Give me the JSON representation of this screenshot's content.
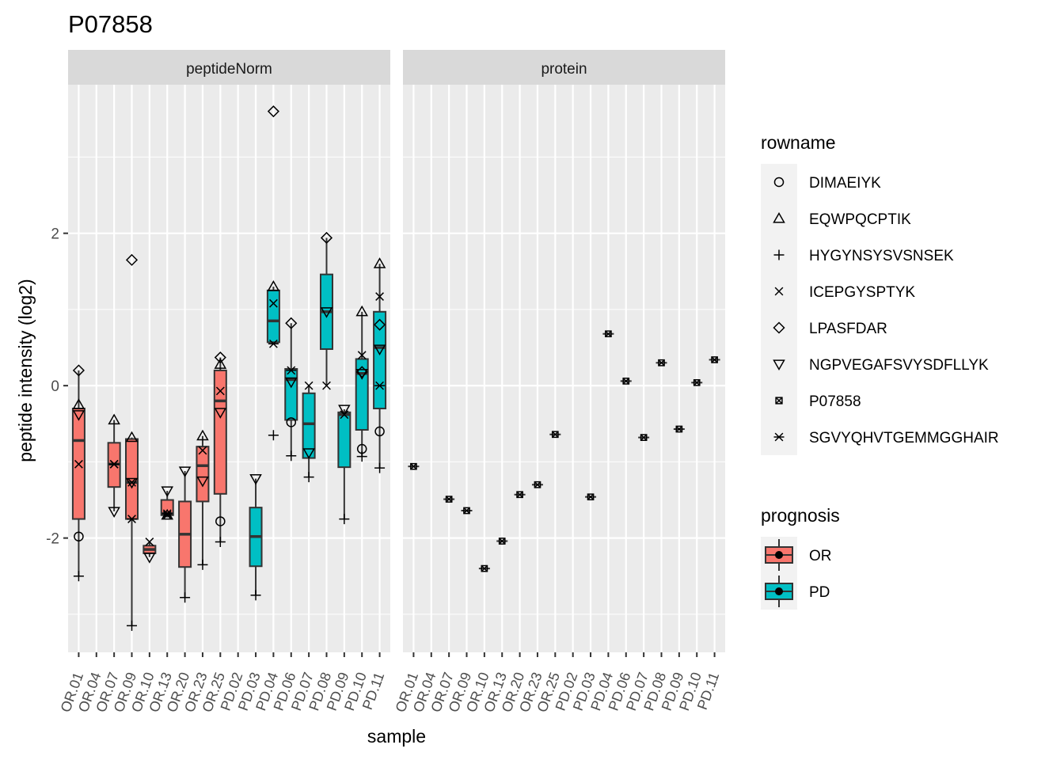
{
  "chart_data": {
    "type": "boxplot",
    "title": "P07858",
    "xlabel": "sample",
    "ylabel": "peptide intensity (log2)",
    "ylim": [
      -3.5,
      3.95
    ],
    "yticks": [
      -2,
      0,
      2
    ],
    "grid": true,
    "legend_position": "right",
    "categories": [
      "OR.01",
      "OR.04",
      "OR.07",
      "OR.09",
      "OR.10",
      "OR.13",
      "OR.20",
      "OR.23",
      "OR.25",
      "PD.02",
      "PD.03",
      "PD.04",
      "PD.06",
      "PD.07",
      "PD.08",
      "PD.09",
      "PD.10",
      "PD.11"
    ],
    "prognosis": [
      "OR",
      "OR",
      "OR",
      "OR",
      "OR",
      "OR",
      "OR",
      "OR",
      "OR",
      "PD",
      "PD",
      "PD",
      "PD",
      "PD",
      "PD",
      "PD",
      "PD",
      "PD"
    ],
    "fill_colors": {
      "OR": "#F8766D",
      "PD": "#00BFC4"
    },
    "panels": [
      {
        "name": "peptideNorm",
        "boxes": [
          {
            "sample": "OR.01",
            "prognosis": "OR",
            "min": -2.5,
            "q1": -1.75,
            "median": -0.72,
            "q3": -0.3,
            "max": 0.2
          },
          {
            "sample": "OR.07",
            "prognosis": "OR",
            "min": -1.65,
            "q1": -1.33,
            "median": -1.03,
            "q3": -0.75,
            "max": -0.45
          },
          {
            "sample": "OR.09",
            "prognosis": "OR",
            "min": -3.15,
            "q1": -1.75,
            "median": -1.27,
            "q3": -0.7,
            "max": -0.68
          },
          {
            "sample": "OR.10",
            "prognosis": "OR",
            "min": -2.25,
            "q1": -2.2,
            "median": -2.15,
            "q3": -2.1,
            "max": -2.05
          },
          {
            "sample": "OR.13",
            "prognosis": "OR",
            "min": -1.73,
            "q1": -1.7,
            "median": -1.68,
            "q3": -1.5,
            "max": -1.38
          },
          {
            "sample": "OR.20",
            "prognosis": "OR",
            "min": -2.78,
            "q1": -2.38,
            "median": -1.95,
            "q3": -1.52,
            "max": -1.12
          },
          {
            "sample": "OR.23",
            "prognosis": "OR",
            "min": -2.35,
            "q1": -1.52,
            "median": -1.05,
            "q3": -0.8,
            "max": -0.66
          },
          {
            "sample": "OR.25",
            "prognosis": "OR",
            "min": -2.05,
            "q1": -1.42,
            "median": -0.2,
            "q3": 0.2,
            "max": 0.37
          },
          {
            "sample": "PD.03",
            "prognosis": "PD",
            "min": -2.75,
            "q1": -2.37,
            "median": -1.98,
            "q3": -1.6,
            "max": -1.22
          },
          {
            "sample": "PD.04",
            "prognosis": "PD",
            "min": 0.55,
            "q1": 0.57,
            "median": 0.85,
            "q3": 1.25,
            "max": 1.3
          },
          {
            "sample": "PD.06",
            "prognosis": "PD",
            "min": -0.92,
            "q1": -0.45,
            "median": 0.08,
            "q3": 0.22,
            "max": 0.82
          },
          {
            "sample": "PD.07",
            "prognosis": "PD",
            "min": -1.2,
            "q1": -0.95,
            "median": -0.5,
            "q3": -0.1,
            "max": 0.0
          },
          {
            "sample": "PD.08",
            "prognosis": "PD",
            "min": 0.0,
            "q1": 0.48,
            "median": 0.97,
            "q3": 1.46,
            "max": 1.94
          },
          {
            "sample": "PD.09",
            "prognosis": "PD",
            "min": -1.75,
            "q1": -1.07,
            "median": -0.38,
            "q3": -0.35,
            "max": -0.31
          },
          {
            "sample": "PD.10",
            "prognosis": "PD",
            "min": -0.93,
            "q1": -0.58,
            "median": 0.16,
            "q3": 0.35,
            "max": 0.97
          },
          {
            "sample": "PD.11",
            "prognosis": "PD",
            "min": -1.08,
            "q1": -0.3,
            "median": 0.5,
            "q3": 0.97,
            "max": 1.6
          }
        ],
        "points": [
          {
            "sample": "OR.01",
            "rowname": "DIMAEIYK",
            "y": -1.98
          },
          {
            "sample": "OR.01",
            "rowname": "EQWPQCPTIK",
            "y": -0.25
          },
          {
            "sample": "OR.01",
            "rowname": "HYGYNSYSVSNSEK",
            "y": -2.5
          },
          {
            "sample": "OR.01",
            "rowname": "ICEPGYSPTYK",
            "y": -1.03
          },
          {
            "sample": "OR.01",
            "rowname": "LPASFDAR",
            "y": 0.2
          },
          {
            "sample": "OR.01",
            "rowname": "NGPVEGAFSVYSDFLLYK",
            "y": -0.38
          },
          {
            "sample": "OR.07",
            "rowname": "EQWPQCPTIK",
            "y": -0.45
          },
          {
            "sample": "OR.07",
            "rowname": "ICEPGYSPTYK",
            "y": -1.03
          },
          {
            "sample": "OR.07",
            "rowname": "NGPVEGAFSVYSDFLLYK",
            "y": -1.65
          },
          {
            "sample": "OR.07",
            "rowname": "SGVYQHVTGEMMGGHAIR",
            "y": -1.03
          },
          {
            "sample": "OR.09",
            "rowname": "EQWPQCPTIK",
            "y": -0.68
          },
          {
            "sample": "OR.09",
            "rowname": "HYGYNSYSVSNSEK",
            "y": -3.15
          },
          {
            "sample": "OR.09",
            "rowname": "ICEPGYSPTYK",
            "y": -1.27
          },
          {
            "sample": "OR.09",
            "rowname": "LPASFDAR",
            "y": 1.65
          },
          {
            "sample": "OR.09",
            "rowname": "NGPVEGAFSVYSDFLLYK",
            "y": -1.27
          },
          {
            "sample": "OR.09",
            "rowname": "SGVYQHVTGEMMGGHAIR",
            "y": -1.75
          },
          {
            "sample": "OR.10",
            "rowname": "ICEPGYSPTYK",
            "y": -2.05
          },
          {
            "sample": "OR.10",
            "rowname": "NGPVEGAFSVYSDFLLYK",
            "y": -2.25
          },
          {
            "sample": "OR.13",
            "rowname": "EQWPQCPTIK",
            "y": -1.7
          },
          {
            "sample": "OR.13",
            "rowname": "ICEPGYSPTYK",
            "y": -1.7
          },
          {
            "sample": "OR.13",
            "rowname": "NGPVEGAFSVYSDFLLYK",
            "y": -1.38
          },
          {
            "sample": "OR.13",
            "rowname": "SGVYQHVTGEMMGGHAIR",
            "y": -1.68
          },
          {
            "sample": "OR.20",
            "rowname": "HYGYNSYSVSNSEK",
            "y": -2.78
          },
          {
            "sample": "OR.20",
            "rowname": "NGPVEGAFSVYSDFLLYK",
            "y": -1.12
          },
          {
            "sample": "OR.23",
            "rowname": "EQWPQCPTIK",
            "y": -0.66
          },
          {
            "sample": "OR.23",
            "rowname": "HYGYNSYSVSNSEK",
            "y": -2.35
          },
          {
            "sample": "OR.23",
            "rowname": "ICEPGYSPTYK",
            "y": -0.85
          },
          {
            "sample": "OR.23",
            "rowname": "NGPVEGAFSVYSDFLLYK",
            "y": -1.25
          },
          {
            "sample": "OR.25",
            "rowname": "DIMAEIYK",
            "y": -1.78
          },
          {
            "sample": "OR.25",
            "rowname": "EQWPQCPTIK",
            "y": 0.28
          },
          {
            "sample": "OR.25",
            "rowname": "HYGYNSYSVSNSEK",
            "y": -2.05
          },
          {
            "sample": "OR.25",
            "rowname": "ICEPGYSPTYK",
            "y": -0.07
          },
          {
            "sample": "OR.25",
            "rowname": "LPASFDAR",
            "y": 0.37
          },
          {
            "sample": "OR.25",
            "rowname": "NGPVEGAFSVYSDFLLYK",
            "y": -0.35
          },
          {
            "sample": "PD.03",
            "rowname": "HYGYNSYSVSNSEK",
            "y": -2.75
          },
          {
            "sample": "PD.03",
            "rowname": "NGPVEGAFSVYSDFLLYK",
            "y": -1.22
          },
          {
            "sample": "PD.04",
            "rowname": "EQWPQCPTIK",
            "y": 1.3
          },
          {
            "sample": "PD.04",
            "rowname": "HYGYNSYSVSNSEK",
            "y": -0.65
          },
          {
            "sample": "PD.04",
            "rowname": "ICEPGYSPTYK",
            "y": 1.08
          },
          {
            "sample": "PD.04",
            "rowname": "LPASFDAR",
            "y": 3.6
          },
          {
            "sample": "PD.04",
            "rowname": "SGVYQHVTGEMMGGHAIR",
            "y": 0.55
          },
          {
            "sample": "PD.06",
            "rowname": "DIMAEIYK",
            "y": -0.48
          },
          {
            "sample": "PD.06",
            "rowname": "HYGYNSYSVSNSEK",
            "y": -0.92
          },
          {
            "sample": "PD.06",
            "rowname": "LPASFDAR",
            "y": 0.82
          },
          {
            "sample": "PD.06",
            "rowname": "NGPVEGAFSVYSDFLLYK",
            "y": 0.05
          },
          {
            "sample": "PD.06",
            "rowname": "SGVYQHVTGEMMGGHAIR",
            "y": 0.2
          },
          {
            "sample": "PD.07",
            "rowname": "HYGYNSYSVSNSEK",
            "y": -1.2
          },
          {
            "sample": "PD.07",
            "rowname": "ICEPGYSPTYK",
            "y": 0.0
          },
          {
            "sample": "PD.07",
            "rowname": "NGPVEGAFSVYSDFLLYK",
            "y": -0.88
          },
          {
            "sample": "PD.08",
            "rowname": "ICEPGYSPTYK",
            "y": 0.0
          },
          {
            "sample": "PD.08",
            "rowname": "LPASFDAR",
            "y": 1.94
          },
          {
            "sample": "PD.08",
            "rowname": "NGPVEGAFSVYSDFLLYK",
            "y": 0.97
          },
          {
            "sample": "PD.09",
            "rowname": "HYGYNSYSVSNSEK",
            "y": -1.75
          },
          {
            "sample": "PD.09",
            "rowname": "ICEPGYSPTYK",
            "y": -0.38
          },
          {
            "sample": "PD.09",
            "rowname": "NGPVEGAFSVYSDFLLYK",
            "y": -0.31
          },
          {
            "sample": "PD.10",
            "rowname": "DIMAEIYK",
            "y": -0.83
          },
          {
            "sample": "PD.10",
            "rowname": "EQWPQCPTIK",
            "y": 0.97
          },
          {
            "sample": "PD.10",
            "rowname": "HYGYNSYSVSNSEK",
            "y": -0.93
          },
          {
            "sample": "PD.10",
            "rowname": "ICEPGYSPTYK",
            "y": 0.4
          },
          {
            "sample": "PD.10",
            "rowname": "LPASFDAR",
            "y": 0.18
          },
          {
            "sample": "PD.10",
            "rowname": "NGPVEGAFSVYSDFLLYK",
            "y": 0.16
          },
          {
            "sample": "PD.11",
            "rowname": "DIMAEIYK",
            "y": -0.6
          },
          {
            "sample": "PD.11",
            "rowname": "EQWPQCPTIK",
            "y": 1.6
          },
          {
            "sample": "PD.11",
            "rowname": "HYGYNSYSVSNSEK",
            "y": -1.08
          },
          {
            "sample": "PD.11",
            "rowname": "ICEPGYSPTYK",
            "y": 1.17
          },
          {
            "sample": "PD.11",
            "rowname": "LPASFDAR",
            "y": 0.8
          },
          {
            "sample": "PD.11",
            "rowname": "NGPVEGAFSVYSDFLLYK",
            "y": 0.48
          },
          {
            "sample": "PD.11",
            "rowname": "SGVYQHVTGEMMGGHAIR",
            "y": 0.0
          }
        ]
      },
      {
        "name": "protein",
        "points": [
          {
            "sample": "OR.01",
            "rowname": "P07858",
            "y": -1.06
          },
          {
            "sample": "OR.07",
            "rowname": "P07858",
            "y": -1.49
          },
          {
            "sample": "OR.09",
            "rowname": "P07858",
            "y": -1.64
          },
          {
            "sample": "OR.10",
            "rowname": "P07858",
            "y": -2.4
          },
          {
            "sample": "OR.13",
            "rowname": "P07858",
            "y": -2.04
          },
          {
            "sample": "OR.20",
            "rowname": "P07858",
            "y": -1.43
          },
          {
            "sample": "OR.23",
            "rowname": "P07858",
            "y": -1.3
          },
          {
            "sample": "OR.25",
            "rowname": "P07858",
            "y": -0.64
          },
          {
            "sample": "PD.03",
            "rowname": "P07858",
            "y": -1.46
          },
          {
            "sample": "PD.04",
            "rowname": "P07858",
            "y": 0.68
          },
          {
            "sample": "PD.06",
            "rowname": "P07858",
            "y": 0.06
          },
          {
            "sample": "PD.07",
            "rowname": "P07858",
            "y": -0.68
          },
          {
            "sample": "PD.08",
            "rowname": "P07858",
            "y": 0.3
          },
          {
            "sample": "PD.09",
            "rowname": "P07858",
            "y": -0.57
          },
          {
            "sample": "PD.10",
            "rowname": "P07858",
            "y": 0.04
          },
          {
            "sample": "PD.11",
            "rowname": "P07858",
            "y": 0.34
          }
        ]
      }
    ],
    "legends": [
      {
        "title": "rowname",
        "entries": [
          {
            "label": "DIMAEIYK",
            "shape": "circle"
          },
          {
            "label": "EQWPQCPTIK",
            "shape": "triangle"
          },
          {
            "label": "HYGYNSYSVSNSEK",
            "shape": "plus"
          },
          {
            "label": "ICEPGYSPTYK",
            "shape": "cross"
          },
          {
            "label": "LPASFDAR",
            "shape": "diamond"
          },
          {
            "label": "NGPVEGAFSVYSDFLLYK",
            "shape": "triangle-down"
          },
          {
            "label": "P07858",
            "shape": "square-cross"
          },
          {
            "label": "SGVYQHVTGEMMGGHAIR",
            "shape": "asterisk"
          }
        ]
      },
      {
        "title": "prognosis",
        "entries": [
          {
            "label": "OR",
            "color": "#F8766D"
          },
          {
            "label": "PD",
            "color": "#00BFC4"
          }
        ]
      }
    ]
  }
}
